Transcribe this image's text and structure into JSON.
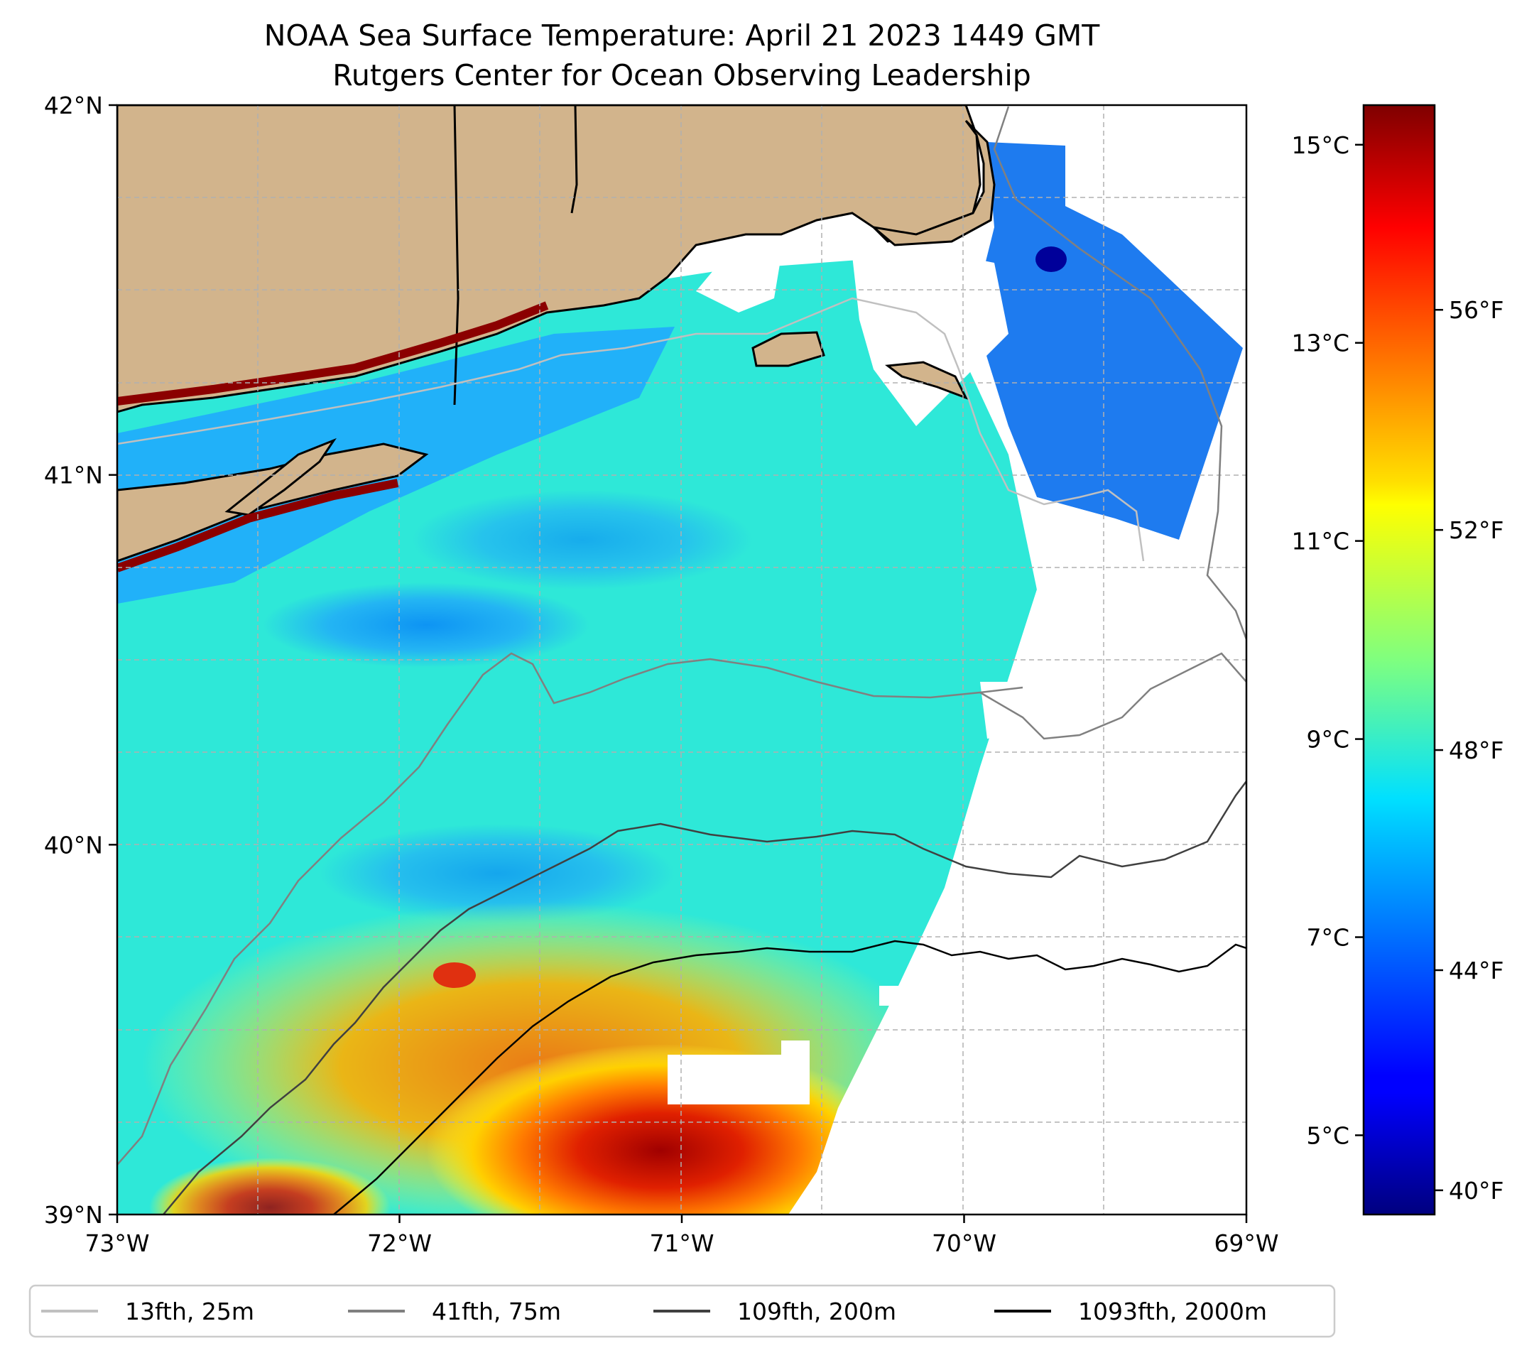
{
  "title": {
    "line1": "NOAA Sea Surface Temperature: April 21 2023 1449 GMT",
    "line2": "Rutgers Center for Ocean Observing Leadership"
  },
  "map": {
    "lon_range": [
      -73,
      -69
    ],
    "lat_range": [
      39,
      42
    ],
    "lon_ticks": [
      {
        "value": -73,
        "label": "73°W"
      },
      {
        "value": -72,
        "label": "72°W"
      },
      {
        "value": -71,
        "label": "71°W"
      },
      {
        "value": -70,
        "label": "70°W"
      },
      {
        "value": -69,
        "label": "69°W"
      }
    ],
    "lat_ticks": [
      {
        "value": 42,
        "label": "42°N"
      },
      {
        "value": 41,
        "label": "41°N"
      },
      {
        "value": 40,
        "label": "40°N"
      },
      {
        "value": 39,
        "label": "39°N"
      }
    ],
    "grid": true,
    "land_color": "#d2b48c"
  },
  "colorbar": {
    "colormap": "jet",
    "range_celsius": [
      4.2,
      15.4
    ],
    "celsius_ticks": [
      {
        "value": 5,
        "label": "5°C"
      },
      {
        "value": 7,
        "label": "7°C"
      },
      {
        "value": 9,
        "label": "9°C"
      },
      {
        "value": 11,
        "label": "11°C"
      },
      {
        "value": 13,
        "label": "13°C"
      },
      {
        "value": 15,
        "label": "15°C"
      }
    ],
    "fahrenheit_ticks": [
      {
        "value": 40,
        "label": "40°F"
      },
      {
        "value": 44,
        "label": "44°F"
      },
      {
        "value": 48,
        "label": "48°F"
      },
      {
        "value": 52,
        "label": "52°F"
      },
      {
        "value": 56,
        "label": "56°F"
      }
    ]
  },
  "legend": {
    "placement": "bottom",
    "items": [
      {
        "label": "13fth, 25m",
        "color": "#c0c0c0"
      },
      {
        "label": "41fth, 75m",
        "color": "#808080"
      },
      {
        "label": "109fth, 200m",
        "color": "#404040"
      },
      {
        "label": "1093fth, 2000m",
        "color": "#000000"
      }
    ]
  }
}
